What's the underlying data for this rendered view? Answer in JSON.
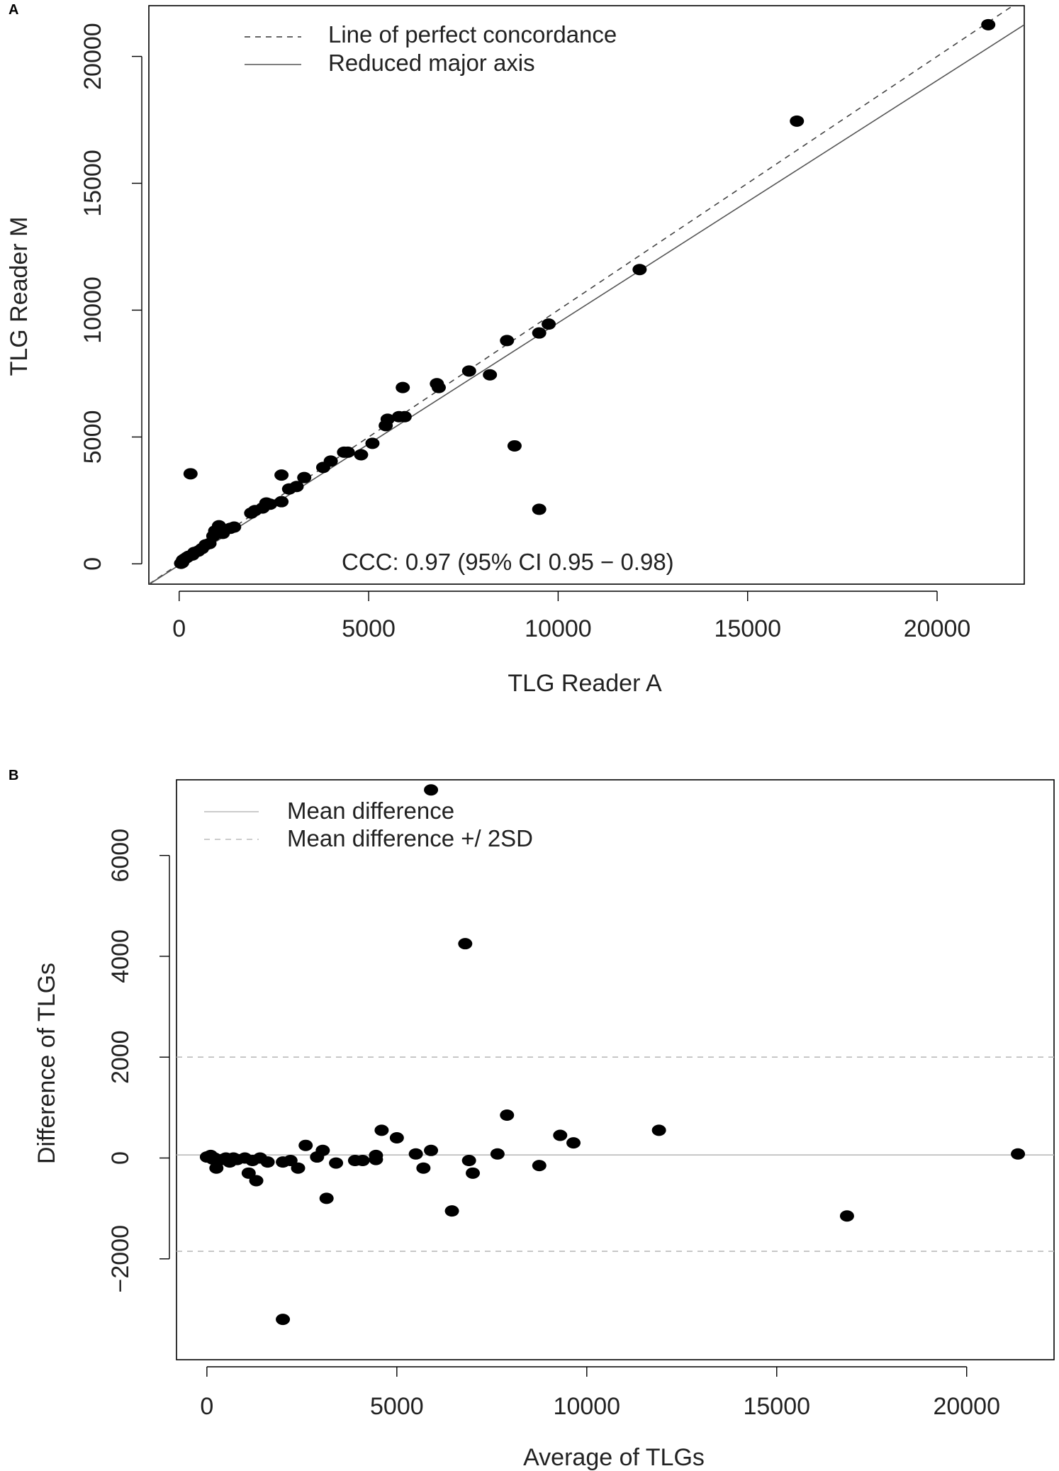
{
  "chart_data": [
    {
      "type": "scatter",
      "panel_label": "A",
      "title": "",
      "xlabel": "TLG Reader A",
      "ylabel": "TLG Reader M",
      "xlim": [
        -800,
        22300
      ],
      "ylim": [
        -800,
        22000
      ],
      "xticks": [
        0,
        5000,
        10000,
        15000,
        20000
      ],
      "yticks": [
        0,
        5000,
        10000,
        15000,
        20000
      ],
      "xtick_labels": [
        "0",
        "5000",
        "10000",
        "15000",
        "20000"
      ],
      "ytick_labels": [
        "0",
        "5000",
        "10000",
        "15000",
        "20000"
      ],
      "legend": [
        {
          "label": "Line of perfect concordance",
          "style": "dashed"
        },
        {
          "label": "Reduced major axis",
          "style": "solid"
        }
      ],
      "legend_position": "top-left",
      "annotation": "CCC: 0.97 (95% CI 0.95 − 0.98)",
      "lines": [
        {
          "name": "Line of perfect concordance",
          "slope": 1.0,
          "intercept": 0
        },
        {
          "name": "Reduced major axis",
          "slope": 0.955,
          "intercept": -50
        }
      ],
      "points": [
        [
          21350,
          21250
        ],
        [
          16300,
          17450
        ],
        [
          12150,
          11600
        ],
        [
          9750,
          9450
        ],
        [
          9500,
          9100
        ],
        [
          8650,
          8800
        ],
        [
          8850,
          4650
        ],
        [
          9500,
          2150
        ],
        [
          8200,
          7450
        ],
        [
          7650,
          7600
        ],
        [
          6800,
          7100
        ],
        [
          6850,
          6950
        ],
        [
          5900,
          6950
        ],
        [
          5950,
          5800
        ],
        [
          5800,
          5800
        ],
        [
          5500,
          5700
        ],
        [
          5450,
          5450
        ],
        [
          5100,
          4750
        ],
        [
          4800,
          4300
        ],
        [
          4450,
          4400
        ],
        [
          4350,
          4400
        ],
        [
          4000,
          4050
        ],
        [
          3800,
          3800
        ],
        [
          3300,
          3400
        ],
        [
          3100,
          3050
        ],
        [
          2900,
          2950
        ],
        [
          2700,
          3500
        ],
        [
          2700,
          2450
        ],
        [
          2400,
          2350
        ],
        [
          2300,
          2400
        ],
        [
          2200,
          2200
        ],
        [
          2000,
          2100
        ],
        [
          1900,
          2000
        ],
        [
          1450,
          1450
        ],
        [
          1350,
          1400
        ],
        [
          1150,
          1200
        ],
        [
          1050,
          1500
        ],
        [
          950,
          1300
        ],
        [
          900,
          1100
        ],
        [
          800,
          800
        ],
        [
          700,
          750
        ],
        [
          600,
          600
        ],
        [
          500,
          500
        ],
        [
          400,
          450
        ],
        [
          350,
          350
        ],
        [
          300,
          3550
        ],
        [
          250,
          300
        ],
        [
          200,
          250
        ],
        [
          150,
          200
        ],
        [
          100,
          150
        ],
        [
          80,
          50
        ],
        [
          50,
          20
        ]
      ]
    },
    {
      "type": "scatter",
      "panel_label": "B",
      "title": "",
      "xlabel": "Average of TLGs",
      "ylabel": "Difference of TLGs",
      "xlim": [
        -800,
        22300
      ],
      "ylim": [
        -4000,
        7500
      ],
      "xticks": [
        0,
        5000,
        10000,
        15000,
        20000
      ],
      "yticks": [
        -2000,
        0,
        2000,
        4000,
        6000
      ],
      "xtick_labels": [
        "0",
        "5000",
        "10000",
        "15000",
        "20000"
      ],
      "ytick_labels": [
        "−2000",
        "0",
        "2000",
        "4000",
        "6000"
      ],
      "legend": [
        {
          "label": "Mean difference",
          "style": "solid"
        },
        {
          "label": "Mean difference +/ 2SD",
          "style": "dashed"
        }
      ],
      "legend_position": "top-left",
      "hlines": [
        {
          "name": "Mean difference",
          "y": 60,
          "style": "solid"
        },
        {
          "name": "Mean difference + 2SD",
          "y": 2000,
          "style": "dashed"
        },
        {
          "name": "Mean difference - 2SD",
          "y": -1850,
          "style": "dashed"
        }
      ],
      "points": [
        [
          5900,
          7300
        ],
        [
          6800,
          4250
        ],
        [
          7900,
          850
        ],
        [
          11900,
          550
        ],
        [
          4600,
          550
        ],
        [
          5000,
          400
        ],
        [
          9300,
          450
        ],
        [
          9650,
          300
        ],
        [
          2600,
          250
        ],
        [
          3050,
          150
        ],
        [
          5900,
          150
        ],
        [
          5500,
          80
        ],
        [
          7650,
          80
        ],
        [
          21350,
          80
        ],
        [
          4450,
          50
        ],
        [
          2900,
          20
        ],
        [
          3900,
          -50
        ],
        [
          4100,
          -50
        ],
        [
          4450,
          -30
        ],
        [
          6900,
          -50
        ],
        [
          2000,
          -80
        ],
        [
          2200,
          -50
        ],
        [
          2400,
          -200
        ],
        [
          3400,
          -100
        ],
        [
          5700,
          -200
        ],
        [
          7000,
          -300
        ],
        [
          8750,
          -150
        ],
        [
          3150,
          -800
        ],
        [
          6450,
          -1050
        ],
        [
          16850,
          -1150
        ],
        [
          2000,
          -3200
        ],
        [
          0,
          20
        ],
        [
          100,
          50
        ],
        [
          150,
          -20
        ],
        [
          200,
          0
        ],
        [
          250,
          -200
        ],
        [
          300,
          -50
        ],
        [
          400,
          -30
        ],
        [
          500,
          0
        ],
        [
          600,
          -80
        ],
        [
          700,
          0
        ],
        [
          800,
          -30
        ],
        [
          1000,
          0
        ],
        [
          1100,
          -300
        ],
        [
          1200,
          -50
        ],
        [
          1300,
          -450
        ],
        [
          1400,
          0
        ],
        [
          1600,
          -80
        ]
      ]
    }
  ]
}
